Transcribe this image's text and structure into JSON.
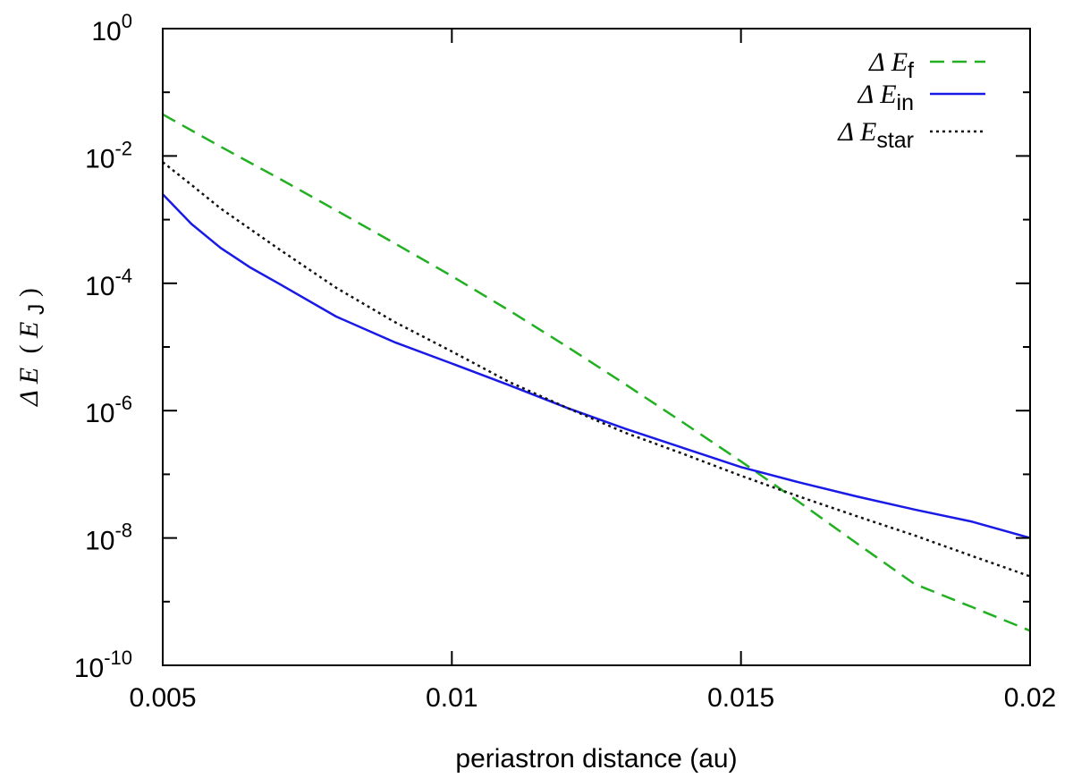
{
  "chart_data": {
    "type": "line",
    "xlabel": "periastron distance (au)",
    "ylabel": {
      "symbol": "Δ E",
      "open": "(",
      "unit": "E",
      "unit_sub": "J",
      "close": ")"
    },
    "xlim": [
      0.005,
      0.02
    ],
    "ylim": [
      1e-10,
      1
    ],
    "yscale": "log",
    "xticks": [
      {
        "value": 0.005,
        "label": "0.005"
      },
      {
        "value": 0.01,
        "label": "0.01"
      },
      {
        "value": 0.015,
        "label": "0.015"
      },
      {
        "value": 0.02,
        "label": "0.02"
      }
    ],
    "yticks": [
      {
        "value": 1,
        "base": "10",
        "exp": "0"
      },
      {
        "value": 0.01,
        "base": "10",
        "exp": "-2"
      },
      {
        "value": 0.0001,
        "base": "10",
        "exp": "-4"
      },
      {
        "value": 1e-06,
        "base": "10",
        "exp": "-6"
      },
      {
        "value": 1e-08,
        "base": "10",
        "exp": "-8"
      },
      {
        "value": 1e-10,
        "base": "10",
        "exp": "-10"
      }
    ],
    "grid": false,
    "legend_position": "top-right",
    "series": [
      {
        "name": "Δ E",
        "sub": "f",
        "color": "#22b022",
        "dash": "dashed",
        "x": [
          0.005,
          0.006,
          0.007,
          0.008,
          0.009,
          0.01,
          0.011,
          0.012,
          0.013,
          0.014,
          0.015,
          0.016,
          0.017,
          0.018,
          0.019,
          0.02
        ],
        "y": [
          0.045,
          0.014,
          0.0045,
          0.0014,
          0.00043,
          0.00013,
          3.7e-05,
          1e-05,
          2.6e-06,
          6.5e-07,
          1.6e-07,
          3.7e-08,
          8.3e-09,
          1.9e-09,
          8.2e-10,
          3.5e-10
        ]
      },
      {
        "name": "Δ E",
        "sub": "in",
        "color": "#1a1ae6",
        "dash": "solid",
        "x": [
          0.005,
          0.0055,
          0.006,
          0.0065,
          0.007,
          0.008,
          0.009,
          0.01,
          0.011,
          0.012,
          0.013,
          0.014,
          0.015,
          0.016,
          0.017,
          0.018,
          0.019,
          0.02
        ],
        "y": [
          0.0025,
          0.00085,
          0.00036,
          0.00018,
          0.0001,
          3e-05,
          1.2e-05,
          5.5e-06,
          2.5e-06,
          1.1e-06,
          5.2e-07,
          2.6e-07,
          1.3e-07,
          7.5e-08,
          4.5e-08,
          2.8e-08,
          1.8e-08,
          1e-08
        ]
      },
      {
        "name": "Δ E",
        "sub": "star",
        "color": "#111111",
        "dash": "dotted",
        "x": [
          0.005,
          0.0055,
          0.006,
          0.007,
          0.008,
          0.009,
          0.01,
          0.011,
          0.012,
          0.013,
          0.014,
          0.015,
          0.016,
          0.017,
          0.018,
          0.019,
          0.02
        ],
        "y": [
          0.008,
          0.0035,
          0.0015,
          0.00035,
          8.5e-05,
          2.5e-05,
          8.5e-06,
          2.8e-06,
          1.1e-06,
          4.5e-07,
          2.1e-07,
          9.5e-08,
          4.5e-08,
          2.2e-08,
          1.1e-08,
          5.2e-09,
          2.5e-09
        ]
      }
    ]
  }
}
